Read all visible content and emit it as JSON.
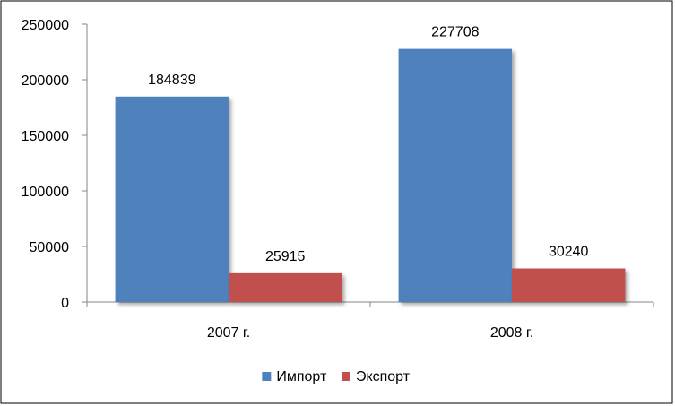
{
  "chart_data": {
    "type": "bar",
    "categories": [
      "2007 г.",
      "2008 г."
    ],
    "series": [
      {
        "name": "Импорт",
        "values": [
          184839,
          227708
        ],
        "color": "#4F81BD"
      },
      {
        "name": "Экспорт",
        "values": [
          25915,
          30240
        ],
        "color": "#C0504D"
      }
    ],
    "ylim": [
      0,
      250000
    ],
    "yticks": [
      0,
      50000,
      100000,
      150000,
      200000,
      250000
    ],
    "ytick_labels": [
      "0",
      "50000",
      "100000",
      "150000",
      "200000",
      "250000"
    ],
    "data_labels": [
      [
        "184839",
        "227708"
      ],
      [
        "25915",
        "30240"
      ]
    ],
    "grid": false,
    "legend": "bottom"
  }
}
